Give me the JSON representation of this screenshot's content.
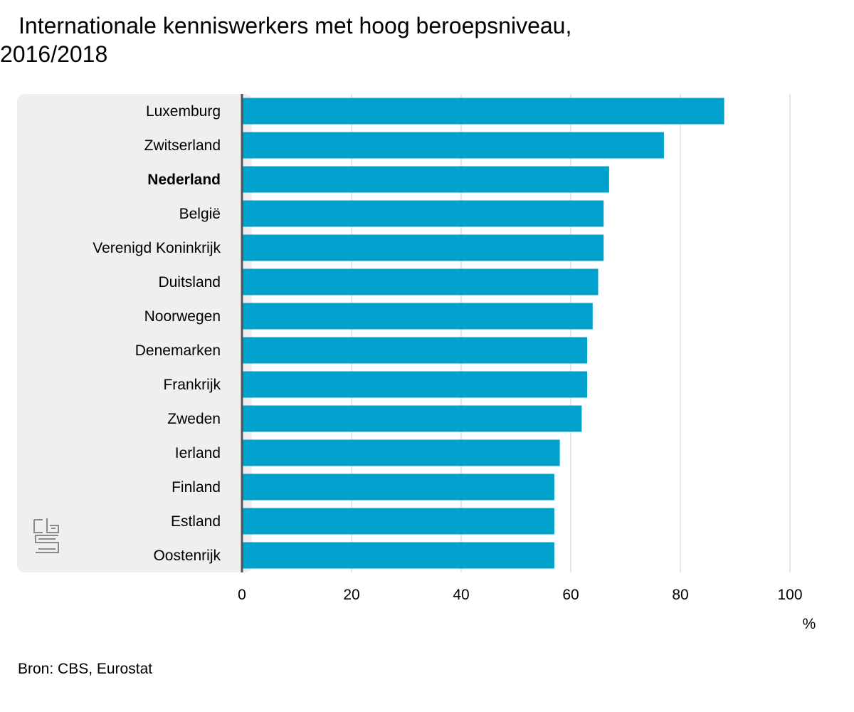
{
  "title": {
    "line1": "Internationale kenniswerkers met hoog beroepsniveau,",
    "line2": "2016/2018"
  },
  "source": "Bron: CBS, Eurostat",
  "logo": {
    "icon": "cbs-logo-icon",
    "text": "cbs"
  },
  "colors": {
    "bar": "#00a1cd",
    "label_panel": "#efefef",
    "grid": "#d0d0d0",
    "axis": "#555555"
  },
  "chart_data": {
    "type": "bar",
    "orientation": "horizontal",
    "categories": [
      "Luxemburg",
      "Zwitserland",
      "Nederland",
      "België",
      "Verenigd Koninkrijk",
      "Duitsland",
      "Noorwegen",
      "Denemarken",
      "Frankrijk",
      "Zweden",
      "Ierland",
      "Finland",
      "Estland",
      "Oostenrijk"
    ],
    "highlight": "Nederland",
    "values": [
      88,
      77,
      67,
      66,
      66,
      65,
      64,
      63,
      63,
      62,
      58,
      57,
      57,
      57
    ],
    "xlim": [
      0,
      100
    ],
    "xticks": [
      0,
      20,
      40,
      60,
      80,
      100
    ],
    "x_unit": "%",
    "grid": true
  }
}
